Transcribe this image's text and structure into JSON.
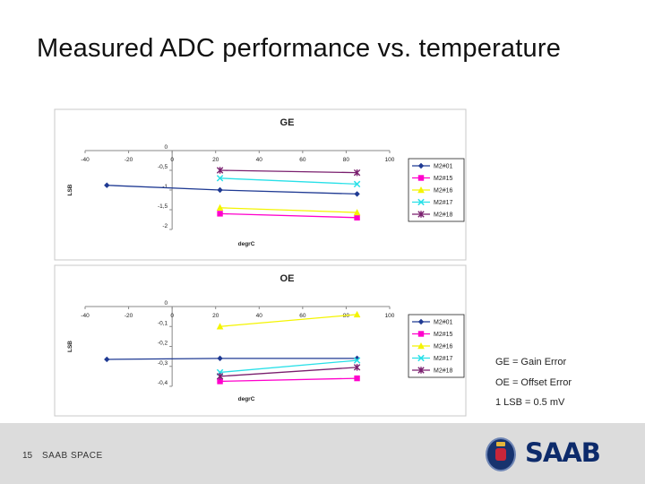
{
  "slide": {
    "title": "Measured ADC performance vs. temperature",
    "notes": [
      "GE = Gain Error",
      "OE = Offset Error",
      "1 LSB = 0.5 mV"
    ],
    "page_number": "15",
    "company": "SAAB SPACE",
    "logo_text": "SAAB"
  },
  "colors": {
    "M2#01": "#1f3a93",
    "M2#15": "#ff00cc",
    "M2#16": "#f4f400",
    "M2#17": "#28e0e8",
    "M2#18": "#7a1f6e"
  },
  "chart_data": [
    {
      "type": "line",
      "title": "GE",
      "xlabel": "degrC",
      "ylabel": "LSB",
      "xlim": [
        -40,
        100
      ],
      "ylim": [
        -2,
        0
      ],
      "xticks": [
        "-40",
        "-20",
        "0",
        "20",
        "40",
        "60",
        "80",
        "100"
      ],
      "yticks": [
        "0",
        "-0,5",
        "-1",
        "-1,5",
        "-2"
      ],
      "ytick_values": [
        0,
        -0.5,
        -1,
        -1.5,
        -2
      ],
      "legend_position": "right",
      "series": [
        {
          "name": "M2#01",
          "marker": "diamond",
          "x": [
            -30,
            22,
            85
          ],
          "y": [
            -0.88,
            -1.0,
            -1.1
          ]
        },
        {
          "name": "M2#15",
          "marker": "square",
          "x": [
            22,
            85
          ],
          "y": [
            -1.6,
            -1.7
          ]
        },
        {
          "name": "M2#16",
          "marker": "triangle",
          "x": [
            22,
            85
          ],
          "y": [
            -1.45,
            -1.57
          ]
        },
        {
          "name": "M2#17",
          "marker": "x",
          "x": [
            22,
            85
          ],
          "y": [
            -0.7,
            -0.85
          ]
        },
        {
          "name": "M2#18",
          "marker": "star",
          "x": [
            22,
            85
          ],
          "y": [
            -0.5,
            -0.56
          ]
        }
      ]
    },
    {
      "type": "line",
      "title": "OE",
      "xlabel": "degrC",
      "ylabel": "LSB",
      "xlim": [
        -40,
        100
      ],
      "ylim": [
        -0.4,
        0
      ],
      "xticks": [
        "-40",
        "-20",
        "0",
        "20",
        "40",
        "60",
        "80",
        "100"
      ],
      "yticks": [
        "0",
        "-0,1",
        "-0,2",
        "-0,3",
        "-0,4"
      ],
      "ytick_values": [
        0,
        -0.1,
        -0.2,
        -0.3,
        -0.4
      ],
      "legend_position": "right",
      "series": [
        {
          "name": "M2#01",
          "marker": "diamond",
          "x": [
            -30,
            22,
            85
          ],
          "y": [
            -0.265,
            -0.26,
            -0.26
          ]
        },
        {
          "name": "M2#15",
          "marker": "square",
          "x": [
            22,
            85
          ],
          "y": [
            -0.375,
            -0.36
          ]
        },
        {
          "name": "M2#16",
          "marker": "triangle",
          "x": [
            22,
            85
          ],
          "y": [
            -0.1,
            -0.04
          ]
        },
        {
          "name": "M2#17",
          "marker": "x",
          "x": [
            22,
            85
          ],
          "y": [
            -0.33,
            -0.27
          ]
        },
        {
          "name": "M2#18",
          "marker": "star",
          "x": [
            22,
            85
          ],
          "y": [
            -0.35,
            -0.305
          ]
        }
      ]
    }
  ]
}
